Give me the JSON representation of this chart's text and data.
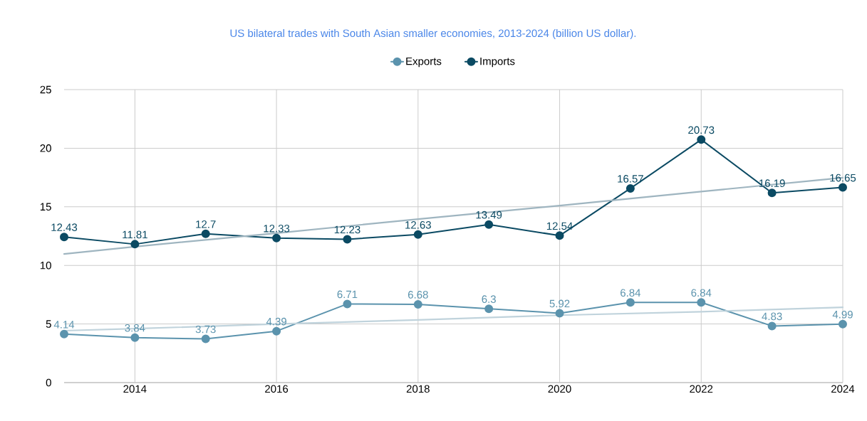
{
  "chart_data": {
    "type": "line",
    "title": "US bilateral trades with South Asian smaller economies, 2013-2024 (billion US dollar).",
    "x": [
      2013,
      2014,
      2015,
      2016,
      2017,
      2018,
      2019,
      2020,
      2021,
      2022,
      2023,
      2024
    ],
    "series": [
      {
        "name": "Exports",
        "color": "#5b93ad",
        "values": [
          4.14,
          3.84,
          3.73,
          4.39,
          6.71,
          6.68,
          6.3,
          5.92,
          6.84,
          6.84,
          4.83,
          4.99
        ],
        "value_labels": [
          "4.14",
          "3.84",
          "3.73",
          "4.39",
          "6.71",
          "6.68",
          "6.3",
          "5.92",
          "6.84",
          "6.84",
          "4.83",
          "4.99"
        ]
      },
      {
        "name": "Imports",
        "color": "#0b4a63",
        "values": [
          12.43,
          11.81,
          12.7,
          12.33,
          12.23,
          12.63,
          13.49,
          12.54,
          16.57,
          20.73,
          16.19,
          16.65
        ],
        "value_labels": [
          "12.43",
          "11.81",
          "12.7",
          "12.33",
          "12.23",
          "12.63",
          "13.49",
          "12.54",
          "16.57",
          "20.73",
          "16.19",
          "16.65"
        ]
      },
      {
        "type": "line",
        "marker": "none",
        "color": "#c0d3dc",
        "x": [
          2013,
          2014,
          2016,
          2018,
          2020,
          2022,
          2024
        ],
        "values": [
          4.43,
          4.6,
          5.0,
          5.35,
          5.75,
          6.05,
          6.43
        ]
      },
      {
        "type": "line",
        "marker": "none",
        "color": "#9fb5c0",
        "x": [
          2013,
          2014,
          2016,
          2018,
          2020,
          2022,
          2024
        ],
        "values": [
          10.98,
          11.6,
          12.75,
          13.95,
          15.1,
          16.3,
          17.48
        ]
      }
    ],
    "xlim": [
      2013,
      2024
    ],
    "xticks": [
      2014,
      2016,
      2018,
      2020,
      2022,
      2024
    ],
    "ylim": [
      0,
      25
    ],
    "yticks": [
      0,
      5,
      10,
      15,
      20,
      25
    ],
    "grid": true,
    "legend": "top",
    "marker": "circle",
    "line_style": "solid"
  }
}
